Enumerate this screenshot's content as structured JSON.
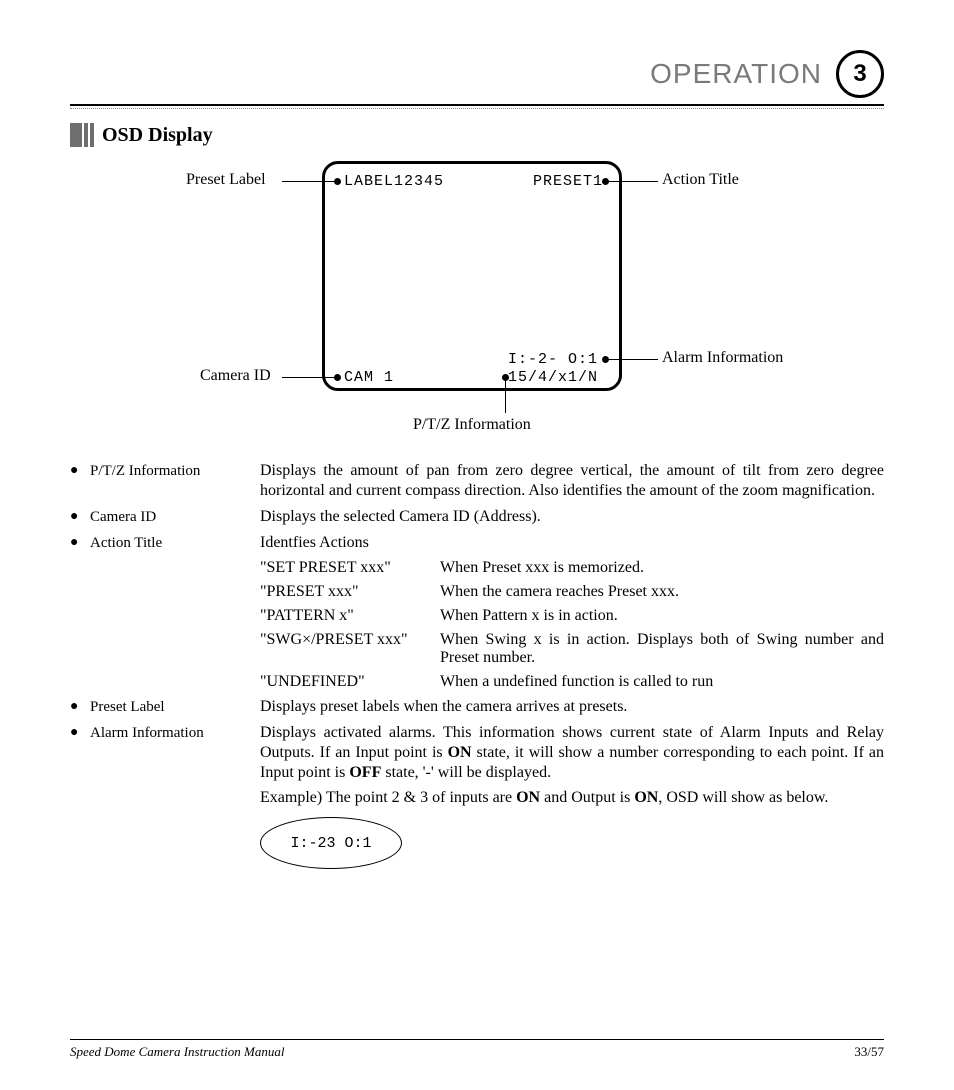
{
  "header": {
    "title": "OPERATION",
    "page_badge": "3"
  },
  "section": {
    "title": "OSD Display"
  },
  "osd": {
    "label": "LABEL12345",
    "preset": "PRESET1",
    "cam": "CAM 1",
    "alarm": "I:-2- O:1",
    "ptz": "15/4/x1/N"
  },
  "legends": {
    "preset_label": "Preset Label",
    "action_title": "Action Title",
    "camera_id": "Camera ID",
    "alarm_info": "Alarm Information",
    "ptz_info": "P/T/Z Information"
  },
  "defs": {
    "ptz": {
      "term": "P/T/Z Information",
      "body": "Displays the amount of pan from zero degree vertical, the amount of tilt from zero degree horizontal and current compass direction. Also identifies the amount of the zoom magnification."
    },
    "camera_id": {
      "term": "Camera ID",
      "body": "Displays the selected Camera ID (Address)."
    },
    "action_title": {
      "term": "Action Title",
      "body": "Identfies Actions"
    },
    "preset_label": {
      "term": "Preset Label",
      "body": "Displays preset labels when the camera arrives at presets."
    },
    "alarm_info": {
      "term": "Alarm Information",
      "body_html": "Displays activated alarms. This information shows current state of Alarm Inputs and Relay Outputs. If an Input point is <b>ON</b> state, it will show a number corresponding to each point. If an Input point is <b>OFF</b> state, '-' will be displayed.",
      "example_html": "Example) The point 2 & 3 of inputs are <b>ON</b> and Output is <b>ON</b>, OSD will show as below."
    }
  },
  "actions": {
    "set_preset": {
      "t": "\"SET PRESET xxx\"",
      "b": "When Preset xxx is memorized."
    },
    "preset": {
      "t": "\"PRESET xxx\"",
      "b": "When the camera reaches Preset xxx."
    },
    "pattern": {
      "t": "\"PATTERN x\"",
      "b": "When Pattern x is in action."
    },
    "swg": {
      "t": "\"SWG×/PRESET xxx\"",
      "b": "When Swing x is in action. Displays both of Swing number and Preset number."
    },
    "undef": {
      "t": "\"UNDEFINED\"",
      "b": "When a undefined function is called to run"
    }
  },
  "ellipse_text": "I:-23 O:1",
  "footer": {
    "left": "Speed Dome Camera Instruction Manual",
    "right": "33/57"
  }
}
